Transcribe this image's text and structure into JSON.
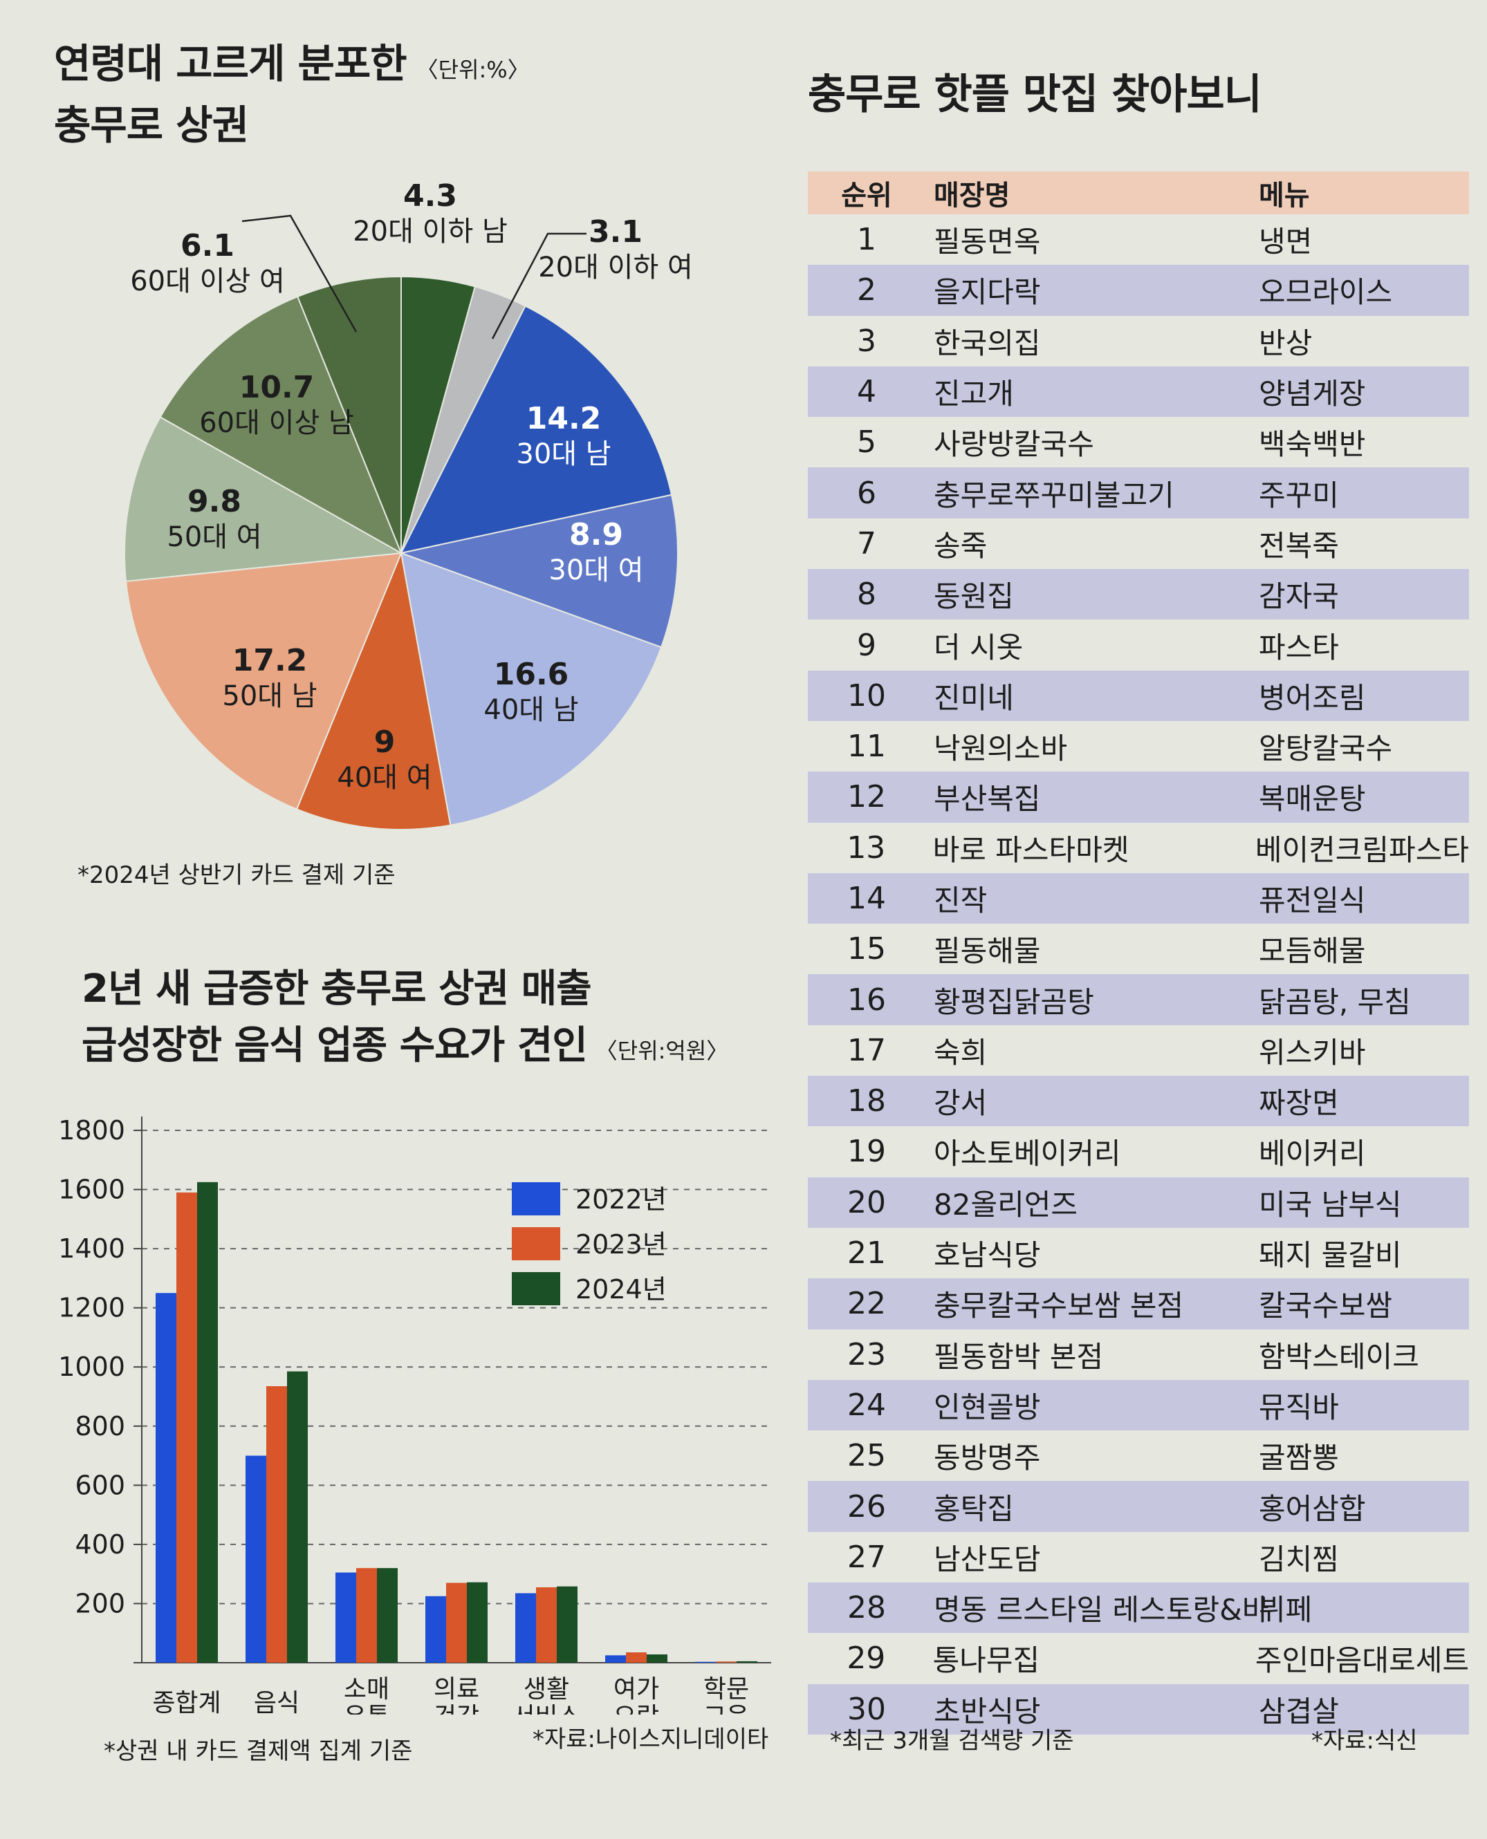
{
  "pie_section": {
    "title_line1": "연령대 고르게 분포한",
    "title_line2": "충무로 상권",
    "unit": "〈단위:%〉",
    "note": "*2024년 상반기 카드 결제 기준"
  },
  "bar_section": {
    "title_line1": "2년 새 급증한 충무로 상권 매출",
    "title_line2": "급성장한 음식 업종 수요가 견인",
    "unit": "〈단위:억원〉",
    "note": "*상권 내 카드 결제액 집계 기준",
    "source": "*자료:나이스지니데이타"
  },
  "table_section": {
    "title": "충무로 핫플 맛집 찾아보니",
    "headers": {
      "rank": "순위",
      "name": "매장명",
      "menu": "메뉴"
    },
    "rows": [
      {
        "rank": "1",
        "name": "필동면옥",
        "menu": "냉면"
      },
      {
        "rank": "2",
        "name": "을지다락",
        "menu": "오므라이스"
      },
      {
        "rank": "3",
        "name": "한국의집",
        "menu": "반상"
      },
      {
        "rank": "4",
        "name": "진고개",
        "menu": "양념게장"
      },
      {
        "rank": "5",
        "name": "사랑방칼국수",
        "menu": "백숙백반"
      },
      {
        "rank": "6",
        "name": "충무로쭈꾸미불고기",
        "menu": "주꾸미"
      },
      {
        "rank": "7",
        "name": "송죽",
        "menu": "전복죽"
      },
      {
        "rank": "8",
        "name": "동원집",
        "menu": "감자국"
      },
      {
        "rank": "9",
        "name": "더 시옷",
        "menu": "파스타"
      },
      {
        "rank": "10",
        "name": "진미네",
        "menu": "병어조림"
      },
      {
        "rank": "11",
        "name": "낙원의소바",
        "menu": "알탕칼국수"
      },
      {
        "rank": "12",
        "name": "부산복집",
        "menu": "복매운탕"
      },
      {
        "rank": "13",
        "name": "바로 파스타마켓",
        "menu": "베이컨크림파스타"
      },
      {
        "rank": "14",
        "name": "진작",
        "menu": "퓨전일식"
      },
      {
        "rank": "15",
        "name": "필동해물",
        "menu": "모듬해물"
      },
      {
        "rank": "16",
        "name": "황평집닭곰탕",
        "menu": "닭곰탕, 무침"
      },
      {
        "rank": "17",
        "name": "숙희",
        "menu": "위스키바"
      },
      {
        "rank": "18",
        "name": "강서",
        "menu": "짜장면"
      },
      {
        "rank": "19",
        "name": "아소토베이커리",
        "menu": "베이커리"
      },
      {
        "rank": "20",
        "name": "82올리언즈",
        "menu": "미국 남부식"
      },
      {
        "rank": "21",
        "name": "호남식당",
        "menu": "돼지 물갈비"
      },
      {
        "rank": "22",
        "name": "충무칼국수보쌈 본점",
        "menu": "칼국수보쌈"
      },
      {
        "rank": "23",
        "name": "필동함박 본점",
        "menu": "함박스테이크"
      },
      {
        "rank": "24",
        "name": "인현골방",
        "menu": "뮤직바"
      },
      {
        "rank": "25",
        "name": "동방명주",
        "menu": "굴짬뽕"
      },
      {
        "rank": "26",
        "name": "홍탁집",
        "menu": "홍어삼합"
      },
      {
        "rank": "27",
        "name": "남산도담",
        "menu": "김치찜"
      },
      {
        "rank": "28",
        "name": "명동 르스타일 레스토랑&바",
        "menu": "뷔페"
      },
      {
        "rank": "29",
        "name": "통나무집",
        "menu": "주인마음대로세트"
      },
      {
        "rank": "30",
        "name": "초반식당",
        "menu": "삼겹살"
      }
    ],
    "note": "*최근 3개월 검색량 기준",
    "source": "*자료:식신"
  },
  "chart_data": [
    {
      "type": "pie",
      "title": "연령대 고르게 분포한 충무로 상권",
      "unit": "〈단위:%〉",
      "slices": [
        {
          "label": "20대 이하 남",
          "value": 4.3,
          "color": "#2f5a2c"
        },
        {
          "label": "20대 이하 여",
          "value": 3.1,
          "color": "#b9bbbd"
        },
        {
          "label": "30대 남",
          "value": 14.2,
          "color": "#2a54b8"
        },
        {
          "label": "30대 여",
          "value": 8.9,
          "color": "#5f79c8"
        },
        {
          "label": "40대 남",
          "value": 16.6,
          "color": "#aab7e3"
        },
        {
          "label": "40대 여",
          "value": 9,
          "color": "#d4602e"
        },
        {
          "label": "50대 남",
          "value": 17.2,
          "color": "#e8a684"
        },
        {
          "label": "50대 여",
          "value": 9.8,
          "color": "#a6b89d"
        },
        {
          "label": "60대 이상 남",
          "value": 10.7,
          "color": "#71885f"
        },
        {
          "label": "60대 이상 여",
          "value": 6.1,
          "color": "#4d6b3f"
        }
      ]
    },
    {
      "type": "bar",
      "title": "2년 새 급증한 충무로 상권 매출 급성장한 음식 업종 수요가 견인",
      "unit": "〈단위:억원〉",
      "categories": [
        "종합계",
        "음식",
        "소매 유통",
        "의료 건강",
        "생활 서비스",
        "여가 오락",
        "학문 교육"
      ],
      "category_lines": [
        [
          "종합계"
        ],
        [
          "음식"
        ],
        [
          "소매",
          "유통"
        ],
        [
          "의료",
          "건강"
        ],
        [
          "생활",
          "서비스"
        ],
        [
          "여가",
          "오락"
        ],
        [
          "학문",
          "교육"
        ]
      ],
      "series": [
        {
          "name": "2022년",
          "color": "#1f4fd6",
          "values": [
            1250,
            700,
            305,
            225,
            235,
            25,
            3
          ]
        },
        {
          "name": "2023년",
          "color": "#d8562a",
          "values": [
            1590,
            935,
            320,
            270,
            255,
            35,
            4
          ]
        },
        {
          "name": "2024년",
          "color": "#1b4f26",
          "values": [
            1625,
            985,
            320,
            272,
            258,
            28,
            5
          ]
        }
      ],
      "yticks": [
        200,
        400,
        600,
        800,
        1000,
        1200,
        1400,
        1600,
        1800
      ],
      "ylim": [
        0,
        1800
      ],
      "grid": true,
      "legend": "top-right"
    }
  ]
}
